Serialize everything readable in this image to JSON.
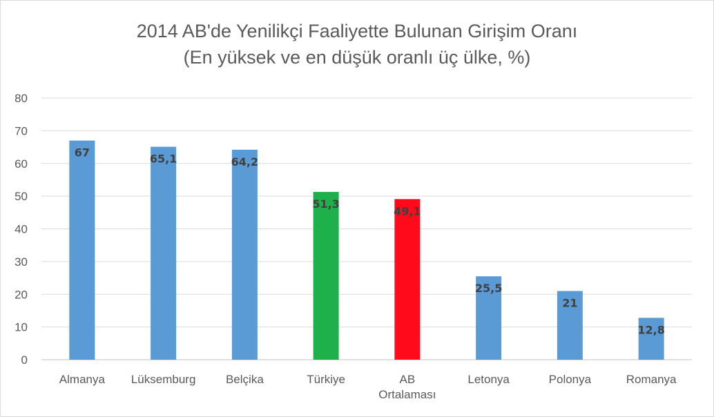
{
  "chart_data": {
    "type": "bar",
    "title": "2014 AB'de Yenilikçi Faaliyette Bulunan Girişim Oranı",
    "subtitle": "(En yüksek ve en düşük oranlı üç ülke, %)",
    "categories": [
      "Almanya",
      "Lüksemburg",
      "Belçika",
      "Türkiye",
      "AB Ortalaması",
      "Letonya",
      "Polonya",
      "Romanya"
    ],
    "values": [
      67,
      65.1,
      64.2,
      51.3,
      49.1,
      25.5,
      21,
      12.8
    ],
    "value_labels": [
      "67",
      "65,1",
      "64,2",
      "51,3",
      "49,1",
      "25,5",
      "21",
      "12,8"
    ],
    "colors": [
      "#5b9bd5",
      "#5b9bd5",
      "#5b9bd5",
      "#1db04b",
      "#ff0a1a",
      "#5b9bd5",
      "#5b9bd5",
      "#5b9bd5"
    ],
    "yticks": [
      "0",
      "10",
      "20",
      "30",
      "40",
      "50",
      "60",
      "70",
      "80"
    ],
    "ylim": [
      0,
      80
    ],
    "grid": true,
    "legend": "none"
  }
}
